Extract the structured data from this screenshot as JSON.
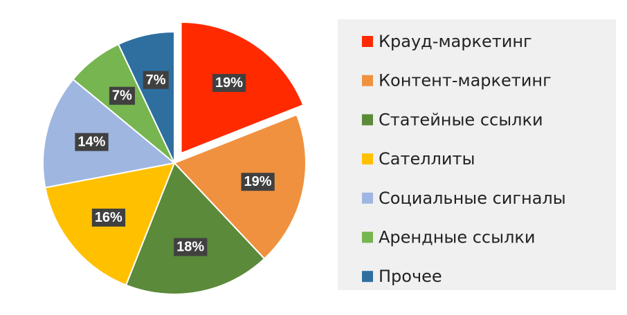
{
  "chart_data": {
    "type": "pie",
    "categories": [
      "Крауд-маркетинг",
      "Контент-маркетинг",
      "Статейные ссылки",
      "Сателлиты",
      "Социальные сигналы",
      "Арендные ссылки",
      "Прочее"
    ],
    "values": [
      19,
      19,
      18,
      16,
      14,
      7,
      7
    ],
    "value_labels": [
      "19%",
      "19%",
      "18%",
      "16%",
      "14%",
      "7%",
      "7%"
    ],
    "colors": [
      "#ff2a00",
      "#f0913f",
      "#5a8a3a",
      "#ffc000",
      "#9fb6e0",
      "#76b54f",
      "#2e6fa0"
    ],
    "explode": [
      true,
      false,
      false,
      false,
      false,
      false,
      false
    ],
    "legend": "right"
  }
}
